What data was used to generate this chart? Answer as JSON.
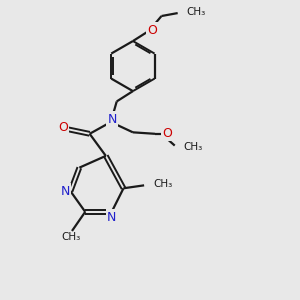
{
  "bg_color": "#e8e8e8",
  "bond_color": "#1a1a1a",
  "nitrogen_color": "#2020cc",
  "oxygen_color": "#cc0000",
  "line_width": 1.6,
  "figsize": [
    3.0,
    3.0
  ],
  "dpi": 100,
  "xlim": [
    0,
    10
  ],
  "ylim": [
    0,
    10
  ]
}
